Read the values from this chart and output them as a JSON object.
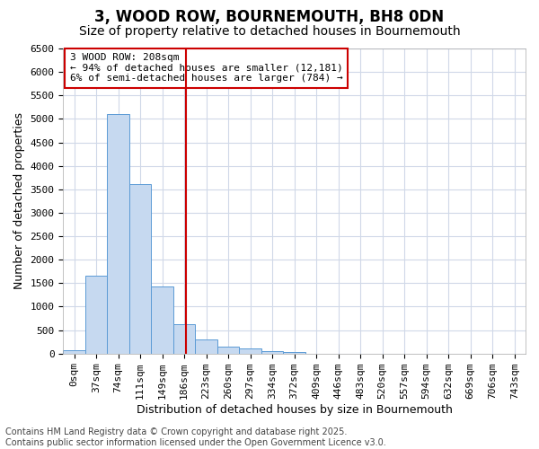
{
  "title": "3, WOOD ROW, BOURNEMOUTH, BH8 0DN",
  "subtitle": "Size of property relative to detached houses in Bournemouth",
  "xlabel": "Distribution of detached houses by size in Bournemouth",
  "ylabel": "Number of detached properties",
  "bar_labels": [
    "0sqm",
    "37sqm",
    "74sqm",
    "111sqm",
    "149sqm",
    "186sqm",
    "223sqm",
    "260sqm",
    "297sqm",
    "334sqm",
    "372sqm",
    "409sqm",
    "446sqm",
    "483sqm",
    "520sqm",
    "557sqm",
    "594sqm",
    "632sqm",
    "669sqm",
    "706sqm",
    "743sqm"
  ],
  "bar_values": [
    65,
    1650,
    5100,
    3620,
    1430,
    620,
    310,
    145,
    100,
    50,
    25,
    0,
    0,
    0,
    0,
    0,
    0,
    0,
    0,
    0,
    0
  ],
  "bar_color": "#c6d9f0",
  "bar_edge_color": "#5b9bd5",
  "vline_color": "#cc0000",
  "ylim_max": 6500,
  "ytick_step": 500,
  "annotation_title": "3 WOOD ROW: 208sqm",
  "annotation_line1": "← 94% of detached houses are smaller (12,181)",
  "annotation_line2": "6% of semi-detached houses are larger (784) →",
  "annotation_box_color": "#cc0000",
  "footer_line1": "Contains HM Land Registry data © Crown copyright and database right 2025.",
  "footer_line2": "Contains public sector information licensed under the Open Government Licence v3.0.",
  "bg_color": "#ffffff",
  "plot_bg_color": "#ffffff",
  "grid_color": "#d0d8e8",
  "title_fontsize": 12,
  "subtitle_fontsize": 10,
  "axis_label_fontsize": 9,
  "tick_fontsize": 8,
  "annot_fontsize": 8,
  "footer_fontsize": 7
}
